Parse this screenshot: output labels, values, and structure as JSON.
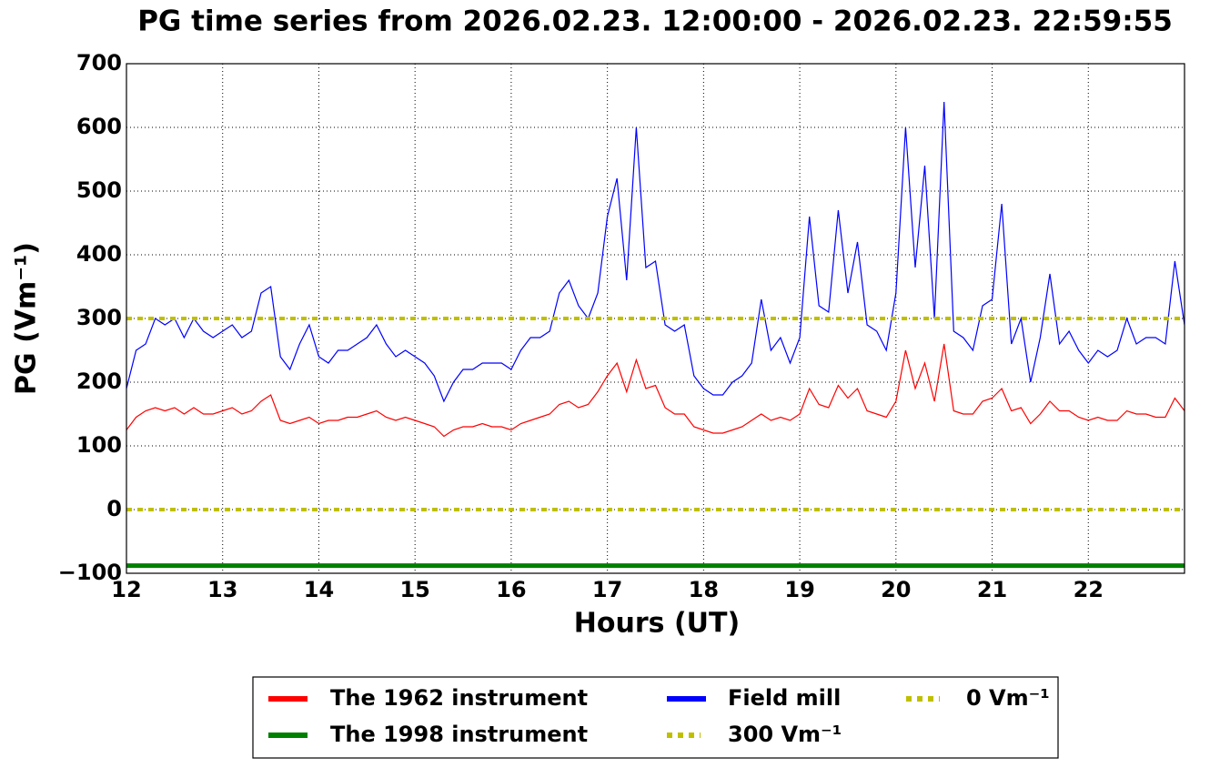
{
  "chart_data": {
    "type": "line",
    "title": "PG time series from 2026.02.23. 12:00:00 - 2026.02.23. 22:59:55",
    "x_label": "Hours (UT)",
    "y_label": "PG (Vm⁻¹)",
    "xlim": [
      12,
      23
    ],
    "ylim": [
      -100,
      700
    ],
    "xticks": [
      12,
      13,
      14,
      15,
      16,
      17,
      18,
      19,
      20,
      21,
      22
    ],
    "yticks": [
      {
        "value": -100,
        "label": "−100"
      },
      0,
      100,
      200,
      300,
      400,
      500,
      600,
      700
    ],
    "grid": true,
    "x": [
      12.0,
      12.1,
      12.2,
      12.3,
      12.4,
      12.5,
      12.6,
      12.7,
      12.8,
      12.9,
      13.0,
      13.1,
      13.2,
      13.3,
      13.4,
      13.5,
      13.6,
      13.7,
      13.8,
      13.9,
      14.0,
      14.1,
      14.2,
      14.3,
      14.4,
      14.5,
      14.6,
      14.7,
      14.8,
      14.9,
      15.0,
      15.1,
      15.2,
      15.3,
      15.4,
      15.5,
      15.6,
      15.7,
      15.8,
      15.9,
      16.0,
      16.1,
      16.2,
      16.3,
      16.4,
      16.5,
      16.6,
      16.7,
      16.8,
      16.9,
      17.0,
      17.1,
      17.2,
      17.3,
      17.4,
      17.5,
      17.6,
      17.7,
      17.8,
      17.9,
      18.0,
      18.1,
      18.2,
      18.3,
      18.4,
      18.5,
      18.6,
      18.7,
      18.8,
      18.9,
      19.0,
      19.1,
      19.2,
      19.3,
      19.4,
      19.5,
      19.6,
      19.7,
      19.8,
      19.9,
      20.0,
      20.1,
      20.2,
      20.3,
      20.4,
      20.5,
      20.6,
      20.7,
      20.8,
      20.9,
      21.0,
      21.1,
      21.2,
      21.3,
      21.4,
      21.5,
      21.6,
      21.7,
      21.8,
      21.9,
      22.0,
      22.1,
      22.2,
      22.3,
      22.4,
      22.5,
      22.6,
      22.7,
      22.8,
      22.9,
      23.0
    ],
    "series": [
      {
        "name": "The 1962 instrument",
        "color": "#ff0000",
        "values": [
          125,
          145,
          155,
          160,
          155,
          160,
          150,
          160,
          150,
          150,
          155,
          160,
          150,
          155,
          170,
          180,
          140,
          135,
          140,
          145,
          135,
          140,
          140,
          145,
          145,
          150,
          155,
          145,
          140,
          145,
          140,
          135,
          130,
          115,
          125,
          130,
          130,
          135,
          130,
          130,
          125,
          135,
          140,
          145,
          150,
          165,
          170,
          160,
          165,
          185,
          210,
          230,
          185,
          235,
          190,
          195,
          160,
          150,
          150,
          130,
          125,
          120,
          120,
          125,
          130,
          140,
          150,
          140,
          145,
          140,
          150,
          190,
          165,
          160,
          195,
          175,
          190,
          155,
          150,
          145,
          170,
          250,
          190,
          230,
          170,
          260,
          155,
          150,
          150,
          170,
          175,
          190,
          155,
          160,
          135,
          150,
          170,
          155,
          155,
          145,
          140,
          145,
          140,
          140,
          155,
          150,
          150,
          145,
          145,
          175,
          155
        ]
      },
      {
        "name": "The 1998 instrument",
        "color": "#008000",
        "x": [
          12,
          23
        ],
        "values": [
          -88,
          -88
        ]
      },
      {
        "name": "Field mill",
        "color": "#0000ff",
        "values": [
          190,
          250,
          260,
          300,
          290,
          300,
          270,
          300,
          280,
          270,
          280,
          290,
          270,
          280,
          340,
          350,
          240,
          220,
          260,
          290,
          240,
          230,
          250,
          250,
          260,
          270,
          290,
          260,
          240,
          250,
          240,
          230,
          210,
          170,
          200,
          220,
          220,
          230,
          230,
          230,
          220,
          250,
          270,
          270,
          280,
          340,
          360,
          320,
          300,
          340,
          460,
          520,
          360,
          600,
          380,
          390,
          290,
          280,
          290,
          210,
          190,
          180,
          180,
          200,
          210,
          230,
          330,
          250,
          270,
          230,
          270,
          460,
          320,
          310,
          470,
          340,
          420,
          290,
          280,
          250,
          340,
          600,
          380,
          540,
          300,
          640,
          280,
          270,
          250,
          320,
          330,
          480,
          260,
          300,
          200,
          270,
          370,
          260,
          280,
          250,
          230,
          250,
          240,
          250,
          300,
          260,
          270,
          270,
          260,
          390,
          290
        ]
      },
      {
        "name": "300 Vm⁻¹",
        "color": "#bfbf00",
        "dashed": true,
        "x": [
          12,
          23
        ],
        "values": [
          300,
          300
        ]
      },
      {
        "name": "0 Vm⁻¹",
        "color": "#bfbf00",
        "dashed": true,
        "x": [
          12,
          23
        ],
        "values": [
          0,
          0
        ]
      }
    ]
  }
}
